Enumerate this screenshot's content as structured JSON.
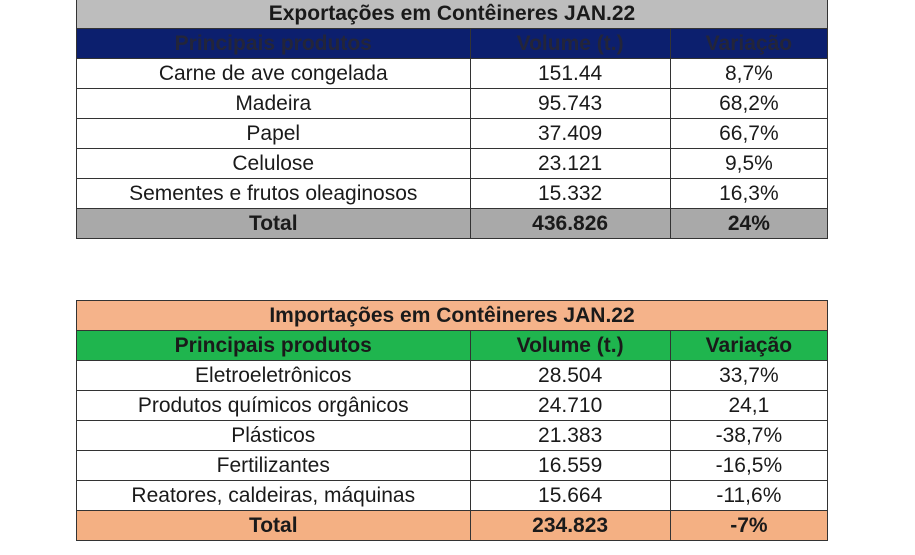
{
  "exports": {
    "title": "Exportações em Contêineres JAN.22",
    "headers": [
      "Principais produtos",
      "Volume (t.)",
      "Variação"
    ],
    "rows": [
      {
        "product": "Carne de ave congelada",
        "volume": "151.44",
        "variation": "8,7%"
      },
      {
        "product": "Madeira",
        "volume": "95.743",
        "variation": "68,2%"
      },
      {
        "product": "Papel",
        "volume": "37.409",
        "variation": "66,7%"
      },
      {
        "product": "Celulose",
        "volume": "23.121",
        "variation": "9,5%"
      },
      {
        "product": "Sementes e frutos oleaginosos",
        "volume": "15.332",
        "variation": "16,3%"
      }
    ],
    "total": {
      "label": "Total",
      "volume": "436.826",
      "variation": "24%"
    },
    "colors": {
      "title_bg": "#bdbdbd",
      "header_bg": "#0c1f6e",
      "total_bg": "#a9a9a9"
    }
  },
  "imports": {
    "title": "Importações em Contêineres JAN.22",
    "headers": [
      "Principais produtos",
      "Volume (t.)",
      "Variação"
    ],
    "rows": [
      {
        "product": "Eletroeletrônicos",
        "volume": "28.504",
        "variation": "33,7%"
      },
      {
        "product": "Produtos químicos orgânicos",
        "volume": "24.710",
        "variation": "24,1"
      },
      {
        "product": "Plásticos",
        "volume": "21.383",
        "variation": "-38,7%"
      },
      {
        "product": "Fertilizantes",
        "volume": "16.559",
        "variation": "-16,5%"
      },
      {
        "product": "Reatores, caldeiras, máquinas",
        "volume": "15.664",
        "variation": "-11,6%"
      }
    ],
    "total": {
      "label": "Total",
      "volume": "234.823",
      "variation": "-7%"
    },
    "colors": {
      "title_bg": "#f5b38a",
      "header_bg": "#1fb54e",
      "total_bg": "#f4b083"
    }
  }
}
